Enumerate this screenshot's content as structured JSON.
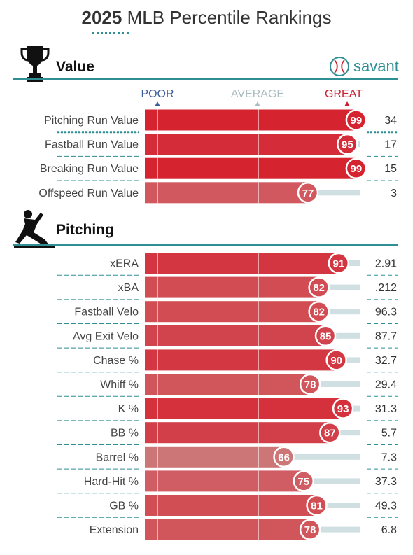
{
  "header": {
    "title_year": "2025",
    "title_rest": "MLB Percentile Rankings"
  },
  "brand": {
    "name": "savant",
    "color": "#2f8f95",
    "icon": "baseball-icon"
  },
  "scale": {
    "poor": "POOR",
    "average": "AVERAGE",
    "great": "GREAT"
  },
  "colors": {
    "poor": "#3b5d9a",
    "average_label": "#a9bcc1",
    "great": "#c8202e",
    "teal": "#2f8f95",
    "track": "#d0e0e2"
  },
  "chart_data": [
    {
      "type": "bar",
      "section": "Value",
      "section_icon": "trophy-icon",
      "xlim": [
        0,
        100
      ],
      "rows": [
        {
          "metric": "Pitching Run Value",
          "percentile": 99,
          "value": "34"
        },
        {
          "metric": "Fastball Run Value",
          "percentile": 95,
          "value": "17"
        },
        {
          "metric": "Breaking Run Value",
          "percentile": 99,
          "value": "15"
        },
        {
          "metric": "Offspeed Run Value",
          "percentile": 77,
          "value": "3"
        }
      ]
    },
    {
      "type": "bar",
      "section": "Pitching",
      "section_icon": "pitcher-icon",
      "xlim": [
        0,
        100
      ],
      "rows": [
        {
          "metric": "xERA",
          "percentile": 91,
          "value": "2.91"
        },
        {
          "metric": "xBA",
          "percentile": 82,
          "value": ".212"
        },
        {
          "metric": "Fastball Velo",
          "percentile": 82,
          "value": "96.3"
        },
        {
          "metric": "Avg Exit Velo",
          "percentile": 85,
          "value": "87.7"
        },
        {
          "metric": "Chase %",
          "percentile": 90,
          "value": "32.7"
        },
        {
          "metric": "Whiff %",
          "percentile": 78,
          "value": "29.4"
        },
        {
          "metric": "K %",
          "percentile": 93,
          "value": "31.3"
        },
        {
          "metric": "BB %",
          "percentile": 87,
          "value": "5.7"
        },
        {
          "metric": "Barrel %",
          "percentile": 66,
          "value": "7.3"
        },
        {
          "metric": "Hard-Hit %",
          "percentile": 75,
          "value": "37.3"
        },
        {
          "metric": "GB %",
          "percentile": 81,
          "value": "49.3"
        },
        {
          "metric": "Extension",
          "percentile": 78,
          "value": "6.8"
        }
      ]
    }
  ]
}
